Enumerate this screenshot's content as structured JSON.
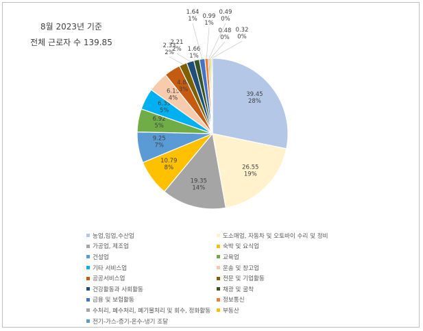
{
  "chart_data": {
    "type": "pie",
    "title": [
      "8월 2023년 기준",
      "전체 근로자 수 139.85"
    ],
    "slices": [
      {
        "name": "농업,임업,수산업",
        "value": 39.45,
        "percent": "28%",
        "color": "#b4c7e7"
      },
      {
        "name": "도소매업, 자동차 및 오토바이 수리 및 정비",
        "value": 26.55,
        "percent": "19%",
        "color": "#fff2cc"
      },
      {
        "name": "가공업, 제조업",
        "value": 19.35,
        "percent": "14%",
        "color": "#a5a5a5"
      },
      {
        "name": "숙박 및 요식업",
        "value": 10.79,
        "percent": "8%",
        "color": "#ffc000"
      },
      {
        "name": "건설업",
        "value": 9.25,
        "percent": "7%",
        "color": "#5b9bd5"
      },
      {
        "name": "교육업",
        "value": 6.92,
        "percent": "5%",
        "color": "#70ad47"
      },
      {
        "name": "기타 서비스업",
        "value": 6.39,
        "percent": "5%",
        "color": "#00b0f0"
      },
      {
        "name": "운송 및 창고업",
        "value": 6.15,
        "percent": "4%",
        "color": "#f8cbad"
      },
      {
        "name": "공공서비스업",
        "value": 4.88,
        "percent": "3%",
        "color": "#c55a11"
      },
      {
        "name": "전문 및 기업활동",
        "value": 2.33,
        "percent": "2%",
        "color": "#7f6000"
      },
      {
        "name": "건강활동과 사회활동",
        "value": 2.21,
        "percent": "2%",
        "color": "#1f4e79"
      },
      {
        "name": "채광 및 굴착",
        "value": 1.66,
        "percent": "1%",
        "color": "#375623"
      },
      {
        "name": "금융 및 보험활동",
        "value": 1.64,
        "percent": "1%",
        "color": "#4472c4"
      },
      {
        "name": "정보통신",
        "value": 0.99,
        "percent": "1%",
        "color": "#ed7d31"
      },
      {
        "name": "수처리, 폐수처리, 폐기물처리 및 회수, 정화활동",
        "value": 0.49,
        "percent": "0%",
        "color": "#a5a5a5"
      },
      {
        "name": "부동산",
        "value": 0.48,
        "percent": "0%",
        "color": "#ffc000"
      },
      {
        "name": "전기-가스-증기-온수-냉기 조달",
        "value": 0.32,
        "percent": "0%",
        "color": "#5b9bd5"
      }
    ],
    "legend": "bottom"
  }
}
